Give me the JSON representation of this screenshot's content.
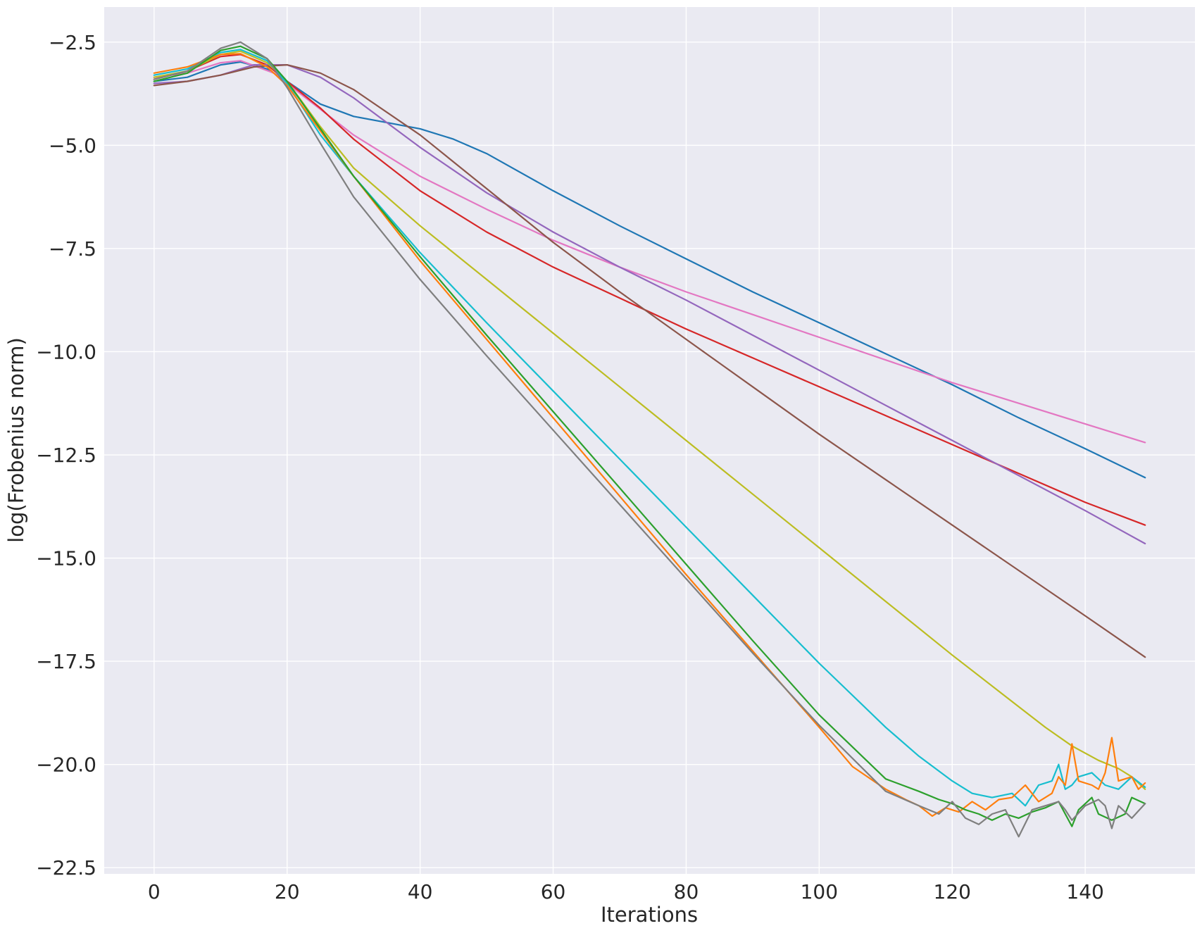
{
  "chart_data": {
    "type": "line",
    "title": "",
    "xlabel": "Iterations",
    "ylabel": "log(Frobenius norm)",
    "xlim": [
      -7.5,
      156.5
    ],
    "ylim": [
      -22.65,
      -1.65
    ],
    "xticks": [
      0,
      20,
      40,
      60,
      80,
      100,
      120,
      140
    ],
    "xtick_labels": [
      "0",
      "20",
      "40",
      "60",
      "80",
      "100",
      "120",
      "140"
    ],
    "yticks": [
      -2.5,
      -5.0,
      -7.5,
      -10.0,
      -12.5,
      -15.0,
      -17.5,
      -20.0,
      -22.5
    ],
    "ytick_labels": [
      "−2.5",
      "−5.0",
      "−7.5",
      "−10.0",
      "−12.5",
      "−15.0",
      "−17.5",
      "−20.0",
      "−22.5"
    ],
    "grid": true,
    "legend": "none",
    "background": "#eaeaf2",
    "series": [
      {
        "color": "#1f77b4",
        "points": [
          [
            0,
            -3.45
          ],
          [
            5,
            -3.35
          ],
          [
            10,
            -3.05
          ],
          [
            13,
            -2.98
          ],
          [
            17,
            -3.15
          ],
          [
            20,
            -3.45
          ],
          [
            25,
            -4.0
          ],
          [
            30,
            -4.3
          ],
          [
            35,
            -4.45
          ],
          [
            40,
            -4.6
          ],
          [
            45,
            -4.85
          ],
          [
            50,
            -5.2
          ],
          [
            60,
            -6.1
          ],
          [
            70,
            -6.95
          ],
          [
            80,
            -7.75
          ],
          [
            90,
            -8.55
          ],
          [
            100,
            -9.3
          ],
          [
            110,
            -10.05
          ],
          [
            120,
            -10.8
          ],
          [
            130,
            -11.6
          ],
          [
            140,
            -12.35
          ],
          [
            149,
            -13.05
          ]
        ]
      },
      {
        "color": "#e377c2",
        "points": [
          [
            0,
            -3.35
          ],
          [
            5,
            -3.25
          ],
          [
            10,
            -3.0
          ],
          [
            13,
            -2.95
          ],
          [
            18,
            -3.25
          ],
          [
            22,
            -3.75
          ],
          [
            30,
            -4.75
          ],
          [
            40,
            -5.75
          ],
          [
            50,
            -6.55
          ],
          [
            60,
            -7.3
          ],
          [
            70,
            -7.95
          ],
          [
            80,
            -8.55
          ],
          [
            90,
            -9.1
          ],
          [
            100,
            -9.65
          ],
          [
            110,
            -10.2
          ],
          [
            120,
            -10.75
          ],
          [
            130,
            -11.25
          ],
          [
            140,
            -11.75
          ],
          [
            149,
            -12.2
          ]
        ]
      },
      {
        "color": "#d62728",
        "points": [
          [
            0,
            -3.4
          ],
          [
            5,
            -3.2
          ],
          [
            10,
            -2.85
          ],
          [
            13,
            -2.8
          ],
          [
            17,
            -3.05
          ],
          [
            20,
            -3.45
          ],
          [
            25,
            -4.1
          ],
          [
            30,
            -4.85
          ],
          [
            40,
            -6.1
          ],
          [
            50,
            -7.1
          ],
          [
            60,
            -7.95
          ],
          [
            70,
            -8.7
          ],
          [
            80,
            -9.45
          ],
          [
            90,
            -10.15
          ],
          [
            100,
            -10.85
          ],
          [
            110,
            -11.55
          ],
          [
            120,
            -12.25
          ],
          [
            130,
            -12.95
          ],
          [
            140,
            -13.65
          ],
          [
            149,
            -14.2
          ]
        ]
      },
      {
        "color": "#9467bd",
        "points": [
          [
            0,
            -3.5
          ],
          [
            5,
            -3.45
          ],
          [
            10,
            -3.3
          ],
          [
            15,
            -3.05
          ],
          [
            20,
            -3.05
          ],
          [
            25,
            -3.35
          ],
          [
            30,
            -3.85
          ],
          [
            40,
            -5.05
          ],
          [
            50,
            -6.15
          ],
          [
            60,
            -7.1
          ],
          [
            70,
            -7.95
          ],
          [
            80,
            -8.75
          ],
          [
            90,
            -9.6
          ],
          [
            100,
            -10.45
          ],
          [
            110,
            -11.3
          ],
          [
            120,
            -12.15
          ],
          [
            130,
            -13.0
          ],
          [
            140,
            -13.85
          ],
          [
            149,
            -14.65
          ]
        ]
      },
      {
        "color": "#8c564b",
        "points": [
          [
            0,
            -3.55
          ],
          [
            5,
            -3.45
          ],
          [
            10,
            -3.3
          ],
          [
            15,
            -3.1
          ],
          [
            20,
            -3.05
          ],
          [
            25,
            -3.25
          ],
          [
            30,
            -3.65
          ],
          [
            40,
            -4.75
          ],
          [
            50,
            -6.05
          ],
          [
            60,
            -7.35
          ],
          [
            70,
            -8.55
          ],
          [
            80,
            -9.7
          ],
          [
            90,
            -10.85
          ],
          [
            100,
            -12.0
          ],
          [
            110,
            -13.1
          ],
          [
            120,
            -14.2
          ],
          [
            130,
            -15.3
          ],
          [
            140,
            -16.4
          ],
          [
            149,
            -17.4
          ]
        ]
      },
      {
        "color": "#bcbd22",
        "points": [
          [
            0,
            -3.35
          ],
          [
            5,
            -3.2
          ],
          [
            10,
            -2.8
          ],
          [
            13,
            -2.72
          ],
          [
            17,
            -3.0
          ],
          [
            20,
            -3.45
          ],
          [
            25,
            -4.55
          ],
          [
            30,
            -5.55
          ],
          [
            40,
            -6.95
          ],
          [
            50,
            -8.25
          ],
          [
            60,
            -9.55
          ],
          [
            70,
            -10.85
          ],
          [
            80,
            -12.15
          ],
          [
            90,
            -13.45
          ],
          [
            100,
            -14.75
          ],
          [
            110,
            -16.05
          ],
          [
            120,
            -17.35
          ],
          [
            130,
            -18.6
          ],
          [
            134,
            -19.1
          ],
          [
            138,
            -19.55
          ],
          [
            142,
            -19.9
          ],
          [
            145,
            -20.1
          ],
          [
            147,
            -20.3
          ],
          [
            149,
            -20.6
          ]
        ]
      },
      {
        "color": "#17becf",
        "points": [
          [
            0,
            -3.3
          ],
          [
            5,
            -3.15
          ],
          [
            10,
            -2.75
          ],
          [
            13,
            -2.68
          ],
          [
            17,
            -2.95
          ],
          [
            20,
            -3.5
          ],
          [
            25,
            -4.75
          ],
          [
            30,
            -5.75
          ],
          [
            40,
            -7.6
          ],
          [
            50,
            -9.3
          ],
          [
            60,
            -10.95
          ],
          [
            70,
            -12.6
          ],
          [
            80,
            -14.25
          ],
          [
            90,
            -15.9
          ],
          [
            100,
            -17.55
          ],
          [
            110,
            -19.1
          ],
          [
            115,
            -19.8
          ],
          [
            120,
            -20.4
          ],
          [
            123,
            -20.7
          ],
          [
            126,
            -20.8
          ],
          [
            129,
            -20.7
          ],
          [
            131,
            -21.0
          ],
          [
            133,
            -20.5
          ],
          [
            135,
            -20.4
          ],
          [
            136,
            -20.0
          ],
          [
            137,
            -20.6
          ],
          [
            138,
            -20.5
          ],
          [
            139,
            -20.3
          ],
          [
            141,
            -20.2
          ],
          [
            143,
            -20.5
          ],
          [
            145,
            -20.6
          ],
          [
            147,
            -20.3
          ],
          [
            149,
            -20.55
          ]
        ]
      },
      {
        "color": "#ff7f0e",
        "points": [
          [
            0,
            -3.25
          ],
          [
            5,
            -3.1
          ],
          [
            10,
            -2.8
          ],
          [
            13,
            -2.78
          ],
          [
            17,
            -3.1
          ],
          [
            20,
            -3.55
          ],
          [
            25,
            -4.65
          ],
          [
            30,
            -5.75
          ],
          [
            40,
            -7.8
          ],
          [
            50,
            -9.7
          ],
          [
            60,
            -11.6
          ],
          [
            70,
            -13.5
          ],
          [
            80,
            -15.4
          ],
          [
            90,
            -17.25
          ],
          [
            100,
            -19.1
          ],
          [
            105,
            -20.05
          ],
          [
            110,
            -20.6
          ],
          [
            113,
            -20.85
          ],
          [
            115,
            -21.0
          ],
          [
            117,
            -21.25
          ],
          [
            119,
            -21.05
          ],
          [
            121,
            -21.15
          ],
          [
            123,
            -20.9
          ],
          [
            125,
            -21.1
          ],
          [
            127,
            -20.85
          ],
          [
            129,
            -20.8
          ],
          [
            131,
            -20.5
          ],
          [
            133,
            -20.9
          ],
          [
            135,
            -20.7
          ],
          [
            136,
            -20.3
          ],
          [
            137,
            -20.5
          ],
          [
            138,
            -19.5
          ],
          [
            139,
            -20.4
          ],
          [
            141,
            -20.5
          ],
          [
            142,
            -20.6
          ],
          [
            143,
            -20.2
          ],
          [
            144,
            -19.35
          ],
          [
            145,
            -20.4
          ],
          [
            147,
            -20.3
          ],
          [
            148,
            -20.6
          ],
          [
            149,
            -20.45
          ]
        ]
      },
      {
        "color": "#2ca02c",
        "points": [
          [
            0,
            -3.45
          ],
          [
            5,
            -3.25
          ],
          [
            10,
            -2.7
          ],
          [
            13,
            -2.6
          ],
          [
            17,
            -2.9
          ],
          [
            20,
            -3.45
          ],
          [
            25,
            -4.6
          ],
          [
            30,
            -5.75
          ],
          [
            40,
            -7.7
          ],
          [
            50,
            -9.6
          ],
          [
            60,
            -11.45
          ],
          [
            70,
            -13.3
          ],
          [
            80,
            -15.15
          ],
          [
            90,
            -17.0
          ],
          [
            100,
            -18.8
          ],
          [
            110,
            -20.35
          ],
          [
            115,
            -20.65
          ],
          [
            118,
            -20.85
          ],
          [
            120,
            -20.95
          ],
          [
            122,
            -21.1
          ],
          [
            124,
            -21.2
          ],
          [
            126,
            -21.35
          ],
          [
            128,
            -21.2
          ],
          [
            130,
            -21.3
          ],
          [
            132,
            -21.15
          ],
          [
            134,
            -21.05
          ],
          [
            136,
            -20.9
          ],
          [
            137,
            -21.2
          ],
          [
            138,
            -21.5
          ],
          [
            139,
            -21.1
          ],
          [
            141,
            -20.8
          ],
          [
            142,
            -21.2
          ],
          [
            144,
            -21.35
          ],
          [
            146,
            -21.2
          ],
          [
            147,
            -20.8
          ],
          [
            149,
            -20.95
          ]
        ]
      },
      {
        "color": "#7f7f7f",
        "points": [
          [
            0,
            -3.4
          ],
          [
            5,
            -3.2
          ],
          [
            10,
            -2.65
          ],
          [
            13,
            -2.5
          ],
          [
            17,
            -2.9
          ],
          [
            20,
            -3.6
          ],
          [
            25,
            -4.95
          ],
          [
            30,
            -6.25
          ],
          [
            40,
            -8.25
          ],
          [
            50,
            -10.1
          ],
          [
            60,
            -11.9
          ],
          [
            70,
            -13.7
          ],
          [
            80,
            -15.5
          ],
          [
            90,
            -17.3
          ],
          [
            100,
            -19.05
          ],
          [
            110,
            -20.65
          ],
          [
            115,
            -21.0
          ],
          [
            118,
            -21.2
          ],
          [
            120,
            -20.9
          ],
          [
            122,
            -21.3
          ],
          [
            124,
            -21.45
          ],
          [
            126,
            -21.2
          ],
          [
            128,
            -21.1
          ],
          [
            130,
            -21.75
          ],
          [
            132,
            -21.1
          ],
          [
            134,
            -21.0
          ],
          [
            136,
            -20.9
          ],
          [
            137,
            -21.1
          ],
          [
            138,
            -21.35
          ],
          [
            140,
            -21.0
          ],
          [
            142,
            -20.85
          ],
          [
            143,
            -21.0
          ],
          [
            144,
            -21.55
          ],
          [
            145,
            -21.0
          ],
          [
            147,
            -21.3
          ],
          [
            149,
            -20.95
          ]
        ]
      }
    ]
  }
}
